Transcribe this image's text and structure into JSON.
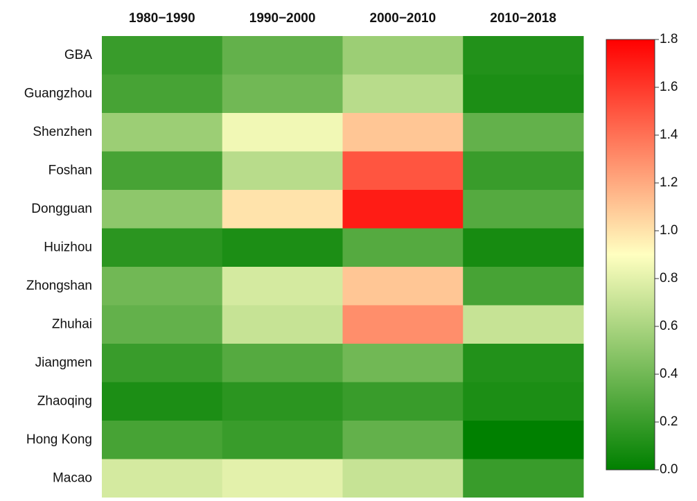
{
  "chart_data": {
    "type": "heatmap",
    "categories": [
      "1980−1990",
      "1990−2000",
      "2000−2010",
      "2010−2018"
    ],
    "rows": [
      "GBA",
      "Guangzhou",
      "Shenzhen",
      "Foshan",
      "Dongguan",
      "Huizhou",
      "Zhongshan",
      "Zhuhai",
      "Jiangmen",
      "Zhaoqing",
      "Hong Kong",
      "Macao"
    ],
    "values": [
      [
        0.2,
        0.35,
        0.55,
        0.12
      ],
      [
        0.25,
        0.4,
        0.65,
        0.1
      ],
      [
        0.55,
        0.85,
        1.1,
        0.35
      ],
      [
        0.25,
        0.65,
        1.5,
        0.2
      ],
      [
        0.5,
        1.0,
        1.7,
        0.3
      ],
      [
        0.15,
        0.1,
        0.3,
        0.08
      ],
      [
        0.4,
        0.75,
        1.1,
        0.25
      ],
      [
        0.35,
        0.7,
        1.3,
        0.7
      ],
      [
        0.2,
        0.3,
        0.4,
        0.12
      ],
      [
        0.1,
        0.15,
        0.2,
        0.1
      ],
      [
        0.25,
        0.2,
        0.35,
        0.0
      ],
      [
        0.75,
        0.8,
        0.7,
        0.2
      ]
    ],
    "colors": [
      "#008000",
      "#ffffc0",
      "#ff0000"
    ],
    "clim": [
      0,
      1.8
    ],
    "cticks": [
      {
        "value": 0,
        "label": "0.0"
      },
      0.2,
      0.4,
      0.6,
      0.8,
      {
        "value": 1,
        "label": "1.0"
      },
      1.2,
      1.4,
      1.6,
      1.8
    ]
  }
}
